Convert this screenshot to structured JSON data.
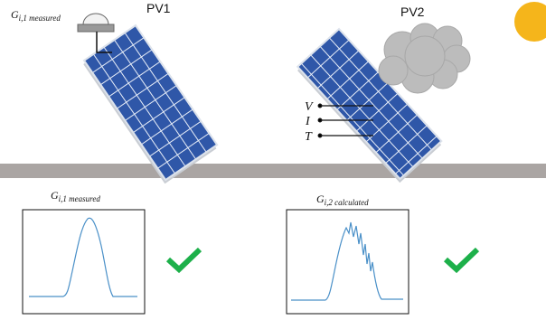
{
  "header": {
    "sensor_label": {
      "symbol": "G",
      "subscript": "i,1 measured"
    }
  },
  "panels": [
    {
      "label": "PV1"
    },
    {
      "label": "PV2"
    }
  ],
  "signals": [
    "V",
    "I",
    "T"
  ],
  "plots": [
    {
      "symbol": "G",
      "subscript": "i,1 measured"
    },
    {
      "symbol": "G",
      "subscript": "i,2 calculated"
    }
  ]
}
